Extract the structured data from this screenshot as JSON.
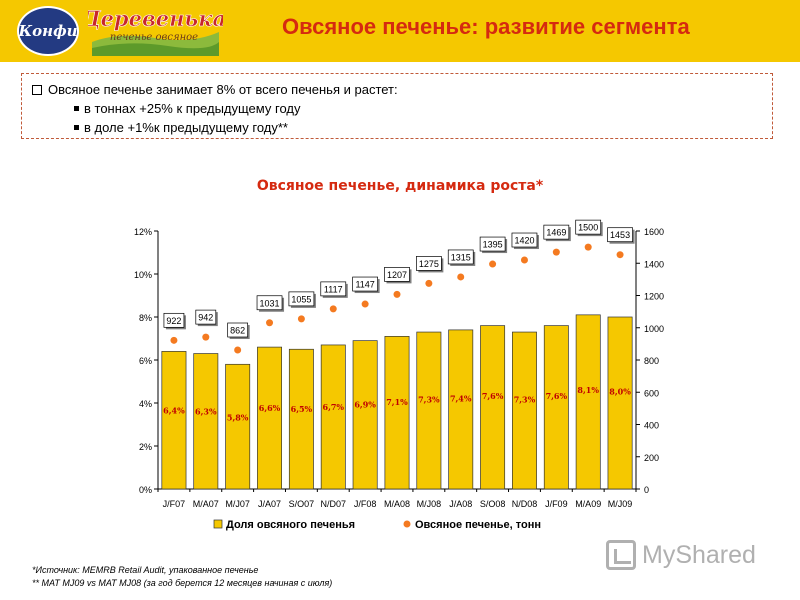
{
  "header": {
    "logo_konfi": "Конфи",
    "logo_derev_top": "Деревенька",
    "logo_derev_bottom": "печенье овсяное",
    "title": "Овсяное печенье: развитие сегмента"
  },
  "infobox": {
    "main": "Овсяное печенье занимает 8% от всего печенья и растет:",
    "sub1": "в тоннах +25% к предыдущему году",
    "sub2": "в доле +1%к предыдущему году**"
  },
  "chart_data": {
    "type": "bar",
    "title": "Овсяное печенье, динамика роста*",
    "categories": [
      "J/F07",
      "M/A07",
      "M/J07",
      "J/A07",
      "S/O07",
      "N/D07",
      "J/F08",
      "M/A08",
      "M/J08",
      "J/A08",
      "S/O08",
      "N/D08",
      "J/F09",
      "M/A09",
      "M/J09"
    ],
    "series": [
      {
        "name": "Доля овсяного печенья",
        "kind": "bar",
        "axis": "left",
        "values": [
          6.4,
          6.3,
          5.8,
          6.6,
          6.5,
          6.7,
          6.9,
          7.1,
          7.3,
          7.4,
          7.6,
          7.3,
          7.6,
          8.1,
          8.0
        ],
        "labels": [
          "6,4%",
          "6,3%",
          "5,8%",
          "6,6%",
          "6,5%",
          "6,7%",
          "6,9%",
          "7,1%",
          "7,3%",
          "7,4%",
          "7,6%",
          "7,3%",
          "7,6%",
          "8,1%",
          "8,0%"
        ]
      },
      {
        "name": "Овсяное печенье, тонн",
        "kind": "scatter",
        "axis": "right",
        "values": [
          922,
          942,
          862,
          1031,
          1055,
          1117,
          1147,
          1207,
          1275,
          1315,
          1395,
          1420,
          1469,
          1500,
          1453
        ],
        "labels": [
          "922",
          "942",
          "862",
          "1031",
          "1055",
          "1117",
          "1147",
          "1207",
          "1275",
          "1315",
          "1395",
          "1420",
          "1469",
          "1500",
          "1453"
        ]
      }
    ],
    "y_left": {
      "min": 0,
      "max": 12,
      "ticks": [
        "0%",
        "2%",
        "4%",
        "6%",
        "8%",
        "10%",
        "12%"
      ]
    },
    "y_right": {
      "min": 0,
      "max": 1600,
      "ticks": [
        "0",
        "200",
        "400",
        "600",
        "800",
        "1000",
        "1200",
        "1400",
        "1600"
      ]
    },
    "legend_position": "bottom",
    "grid": false,
    "colors": {
      "bar": "#f5c800",
      "bar_stroke": "#333333",
      "dot": "#f47a20",
      "bar_label": "#c00000"
    }
  },
  "footnotes": {
    "line1": "*Источник: MEMRB Retail Audit, упакованное печенье",
    "line2": "** MAT MJ09 vs MAT MJ08 (за год берется 12 месяцев начиная с июля)"
  },
  "watermark": "MyShared"
}
